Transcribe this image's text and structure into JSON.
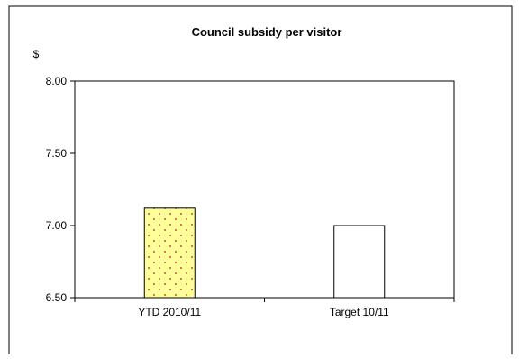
{
  "chart_data": {
    "type": "bar",
    "title": "Council subsidy per visitor",
    "ylabel": "$",
    "xlabel": "",
    "categories": [
      "YTD 2010/11",
      "Target 10/11"
    ],
    "values": [
      7.12,
      7.0
    ],
    "ylim": [
      6.5,
      8.0
    ],
    "yticks": [
      "6.50",
      "7.00",
      "7.50",
      "8.00"
    ],
    "grid": false,
    "legend": "none",
    "bar_styles": [
      {
        "fill": "#ffff99",
        "pattern": "dotted",
        "dot_color": "#c0504d"
      },
      {
        "fill": "#ffffff",
        "pattern": "none"
      }
    ]
  },
  "colors": {
    "background": "#ffffff",
    "border": "#000000",
    "axis": "#000000"
  }
}
